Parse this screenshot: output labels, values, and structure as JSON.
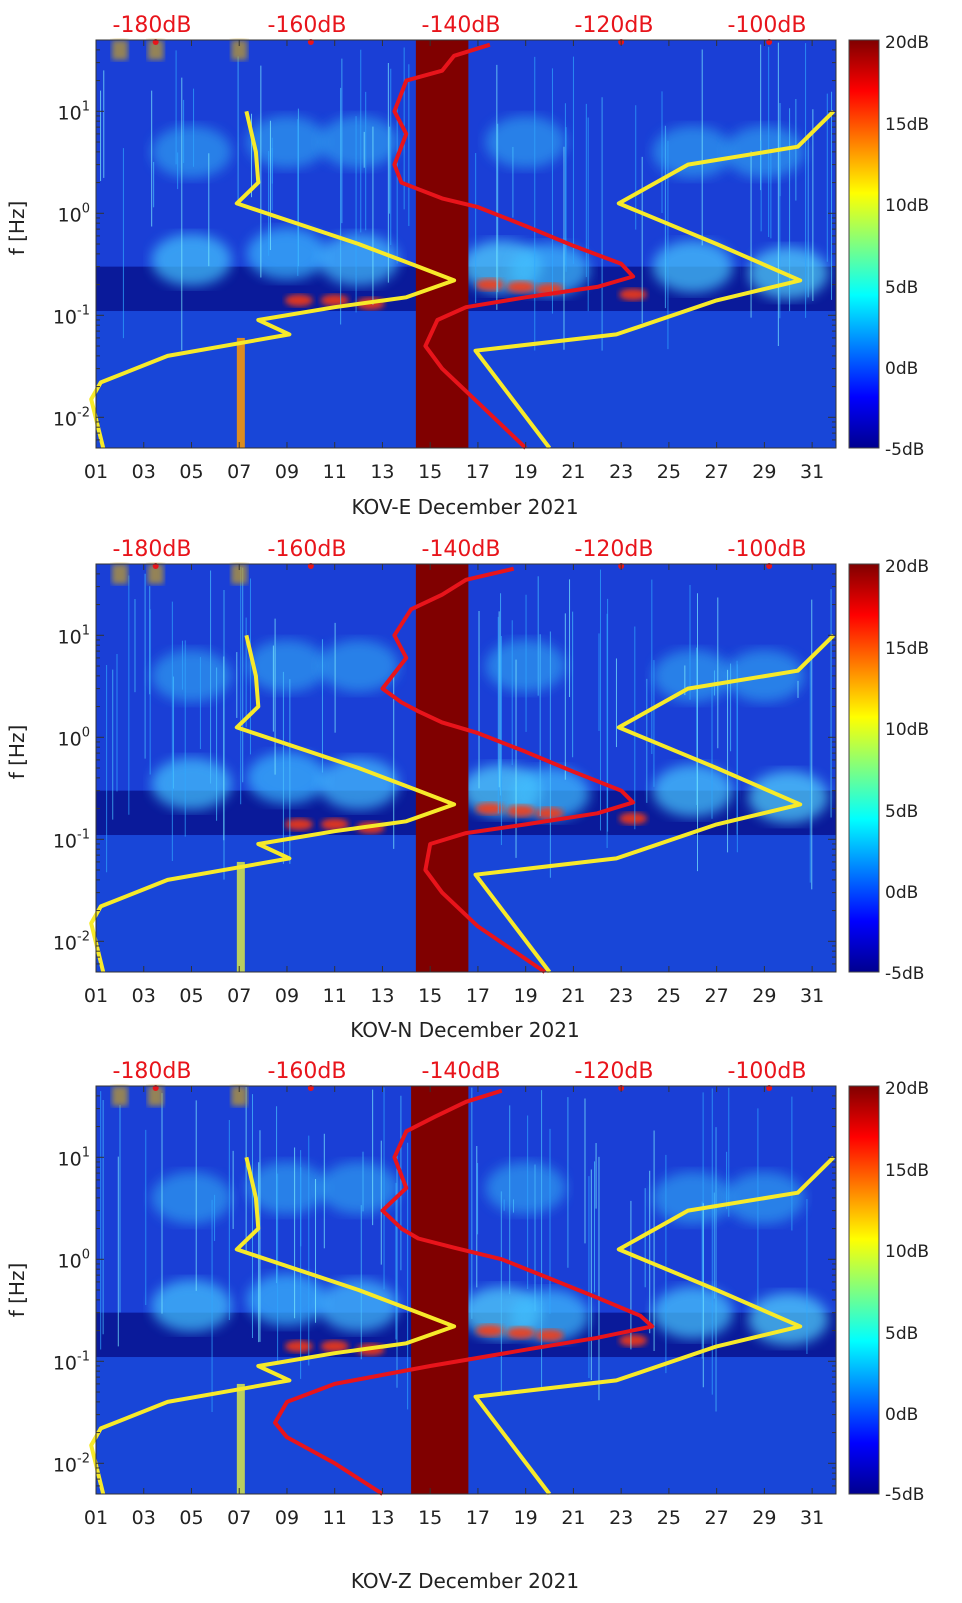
{
  "chart_data": [
    {
      "type": "heatmap",
      "xlabel": "KOV-E December 2021",
      "ylabel": "f [Hz]",
      "x_ticks": [
        "01",
        "03",
        "05",
        "07",
        "09",
        "11",
        "13",
        "15",
        "17",
        "19",
        "21",
        "23",
        "25",
        "27",
        "29",
        "31"
      ],
      "y_ticks": [
        {
          "label": "10",
          "exp": "1",
          "value": 10
        },
        {
          "label": "10",
          "exp": "0",
          "value": 1
        },
        {
          "label": "10",
          "exp": "-1",
          "value": 0.1
        },
        {
          "label": "10",
          "exp": "-2",
          "value": 0.01
        }
      ],
      "ylim": [
        0.005,
        50
      ],
      "xlim": [
        1,
        32
      ],
      "top_axis_ticks": [
        "-180dB",
        "-160dB",
        "-140dB",
        "-120dB",
        "-100dB"
      ],
      "colorbar": {
        "ticks": [
          "20dB",
          "15dB",
          "10dB",
          "5dB",
          "0dB",
          "-5dB"
        ],
        "range": [
          -5,
          20
        ]
      },
      "data_gap": {
        "from_day": 14.4,
        "to_day": 16.6
      },
      "yellow_series": [
        {
          "name": "low model",
          "points": [
            [
              7.3,
              10
            ],
            [
              7.7,
              4
            ],
            [
              7.8,
              2
            ],
            [
              6.9,
              1.25
            ],
            [
              12,
              0.5
            ],
            [
              14.5,
              0.3
            ],
            [
              16,
              0.22
            ],
            [
              14,
              0.15
            ],
            [
              11,
              0.12
            ],
            [
              7.8,
              0.09
            ],
            [
              9.1,
              0.065
            ],
            [
              4,
              0.04
            ],
            [
              1.2,
              0.022
            ],
            [
              0.8,
              0.015
            ],
            [
              1.3,
              0.005
            ]
          ]
        },
        {
          "name": "high model",
          "points": [
            [
              31.9,
              10
            ],
            [
              30.4,
              4.5
            ],
            [
              25.8,
              3
            ],
            [
              22.9,
              1.25
            ],
            [
              27,
              0.5
            ],
            [
              30.5,
              0.22
            ],
            [
              27,
              0.14
            ],
            [
              22.8,
              0.065
            ],
            [
              16.9,
              0.045
            ],
            [
              20,
              0.005
            ]
          ]
        }
      ],
      "red_series": [
        {
          "name": "median",
          "points": [
            [
              17.5,
              45
            ],
            [
              16,
              35
            ],
            [
              15.5,
              25
            ],
            [
              14,
              20
            ],
            [
              13.5,
              10
            ],
            [
              14,
              6
            ],
            [
              13.5,
              3
            ],
            [
              13.8,
              2
            ],
            [
              14.3,
              1.8
            ],
            [
              15.5,
              1.4
            ],
            [
              17,
              1.15
            ],
            [
              19,
              0.75
            ],
            [
              21,
              0.48
            ],
            [
              23,
              0.32
            ],
            [
              23.5,
              0.24
            ],
            [
              22,
              0.19
            ],
            [
              19,
              0.15
            ],
            [
              16.5,
              0.12
            ],
            [
              15.3,
              0.09
            ],
            [
              14.8,
              0.05
            ],
            [
              15.5,
              0.03
            ],
            [
              17,
              0.014
            ],
            [
              19,
              0.005
            ]
          ]
        }
      ]
    },
    {
      "type": "heatmap",
      "xlabel": "KOV-N December 2021",
      "ylabel": "f [Hz]",
      "x_ticks": [
        "01",
        "03",
        "05",
        "07",
        "09",
        "11",
        "13",
        "15",
        "17",
        "19",
        "21",
        "23",
        "25",
        "27",
        "29",
        "31"
      ],
      "y_ticks": [
        {
          "label": "10",
          "exp": "1",
          "value": 10
        },
        {
          "label": "10",
          "exp": "0",
          "value": 1
        },
        {
          "label": "10",
          "exp": "-1",
          "value": 0.1
        },
        {
          "label": "10",
          "exp": "-2",
          "value": 0.01
        }
      ],
      "ylim": [
        0.005,
        50
      ],
      "xlim": [
        1,
        32
      ],
      "top_axis_ticks": [
        "-180dB",
        "-160dB",
        "-140dB",
        "-120dB",
        "-100dB"
      ],
      "colorbar": {
        "ticks": [
          "20dB",
          "15dB",
          "10dB",
          "5dB",
          "0dB",
          "-5dB"
        ],
        "range": [
          -5,
          20
        ]
      },
      "data_gap": {
        "from_day": 14.4,
        "to_day": 16.6
      },
      "yellow_series": [
        {
          "name": "low model",
          "points": [
            [
              7.3,
              10
            ],
            [
              7.7,
              4
            ],
            [
              7.8,
              2
            ],
            [
              6.9,
              1.25
            ],
            [
              12,
              0.5
            ],
            [
              14.5,
              0.3
            ],
            [
              16,
              0.22
            ],
            [
              14,
              0.15
            ],
            [
              11,
              0.12
            ],
            [
              7.8,
              0.09
            ],
            [
              9.1,
              0.065
            ],
            [
              4,
              0.04
            ],
            [
              1.2,
              0.022
            ],
            [
              0.8,
              0.015
            ],
            [
              1.3,
              0.005
            ]
          ]
        },
        {
          "name": "high model",
          "points": [
            [
              31.9,
              10
            ],
            [
              30.4,
              4.5
            ],
            [
              25.8,
              3
            ],
            [
              22.9,
              1.25
            ],
            [
              27,
              0.5
            ],
            [
              30.5,
              0.22
            ],
            [
              27,
              0.14
            ],
            [
              22.8,
              0.065
            ],
            [
              16.9,
              0.045
            ],
            [
              20,
              0.005
            ]
          ]
        }
      ],
      "red_series": [
        {
          "name": "median",
          "points": [
            [
              18.5,
              45
            ],
            [
              16.5,
              35
            ],
            [
              15.5,
              25
            ],
            [
              14.2,
              18
            ],
            [
              13.5,
              10
            ],
            [
              14,
              6
            ],
            [
              13,
              3
            ],
            [
              13.8,
              2.2
            ],
            [
              14.5,
              1.8
            ],
            [
              15.5,
              1.4
            ],
            [
              17,
              1.1
            ],
            [
              19,
              0.72
            ],
            [
              21,
              0.46
            ],
            [
              23,
              0.3
            ],
            [
              23.5,
              0.23
            ],
            [
              22,
              0.18
            ],
            [
              19,
              0.14
            ],
            [
              16.5,
              0.115
            ],
            [
              15,
              0.09
            ],
            [
              14.8,
              0.05
            ],
            [
              15.5,
              0.03
            ],
            [
              17,
              0.014
            ],
            [
              19.8,
              0.005
            ]
          ]
        }
      ]
    },
    {
      "type": "heatmap",
      "xlabel": "KOV-Z December 2021",
      "ylabel": "f [Hz]",
      "x_ticks": [
        "01",
        "03",
        "05",
        "07",
        "09",
        "11",
        "13",
        "15",
        "17",
        "19",
        "21",
        "23",
        "25",
        "27",
        "29",
        "31"
      ],
      "y_ticks": [
        {
          "label": "10",
          "exp": "1",
          "value": 10
        },
        {
          "label": "10",
          "exp": "0",
          "value": 1
        },
        {
          "label": "10",
          "exp": "-1",
          "value": 0.1
        },
        {
          "label": "10",
          "exp": "-2",
          "value": 0.01
        }
      ],
      "ylim": [
        0.005,
        50
      ],
      "xlim": [
        1,
        32
      ],
      "top_axis_ticks": [
        "-180dB",
        "-160dB",
        "-140dB",
        "-120dB",
        "-100dB"
      ],
      "colorbar": {
        "ticks": [
          "20dB",
          "15dB",
          "10dB",
          "5dB",
          "0dB",
          "-5dB"
        ],
        "range": [
          -5,
          20
        ]
      },
      "data_gap": {
        "from_day": 14.2,
        "to_day": 16.6
      },
      "yellow_series": [
        {
          "name": "low model",
          "points": [
            [
              7.3,
              10
            ],
            [
              7.7,
              4
            ],
            [
              7.8,
              2
            ],
            [
              6.9,
              1.25
            ],
            [
              12,
              0.5
            ],
            [
              14.5,
              0.3
            ],
            [
              16,
              0.22
            ],
            [
              14,
              0.15
            ],
            [
              11,
              0.12
            ],
            [
              7.8,
              0.09
            ],
            [
              9.1,
              0.065
            ],
            [
              4,
              0.04
            ],
            [
              1.2,
              0.022
            ],
            [
              0.8,
              0.015
            ],
            [
              1.3,
              0.005
            ]
          ]
        },
        {
          "name": "high model",
          "points": [
            [
              31.9,
              10
            ],
            [
              30.4,
              4.5
            ],
            [
              25.8,
              3
            ],
            [
              22.9,
              1.25
            ],
            [
              27,
              0.5
            ],
            [
              30.5,
              0.22
            ],
            [
              27,
              0.14
            ],
            [
              22.8,
              0.065
            ],
            [
              16.9,
              0.045
            ],
            [
              20,
              0.005
            ]
          ]
        }
      ],
      "red_series": [
        {
          "name": "median",
          "points": [
            [
              18,
              45
            ],
            [
              16.5,
              35
            ],
            [
              15.2,
              25
            ],
            [
              14,
              18
            ],
            [
              13.5,
              10
            ],
            [
              14,
              5
            ],
            [
              13,
              3
            ],
            [
              13.8,
              2
            ],
            [
              14.5,
              1.6
            ],
            [
              16,
              1.3
            ],
            [
              18,
              1
            ],
            [
              20,
              0.65
            ],
            [
              22,
              0.42
            ],
            [
              23.8,
              0.28
            ],
            [
              24.3,
              0.22
            ],
            [
              22,
              0.17
            ],
            [
              19,
              0.13
            ],
            [
              15,
              0.09
            ],
            [
              11,
              0.06
            ],
            [
              9,
              0.04
            ],
            [
              8.5,
              0.025
            ],
            [
              9,
              0.018
            ],
            [
              11,
              0.01
            ],
            [
              13,
              0.005
            ]
          ]
        }
      ]
    }
  ],
  "colors": {
    "gap": "#800000",
    "yellow": "#f7ea2a",
    "red": "#e8141b",
    "top_labels": "#e8141b"
  }
}
